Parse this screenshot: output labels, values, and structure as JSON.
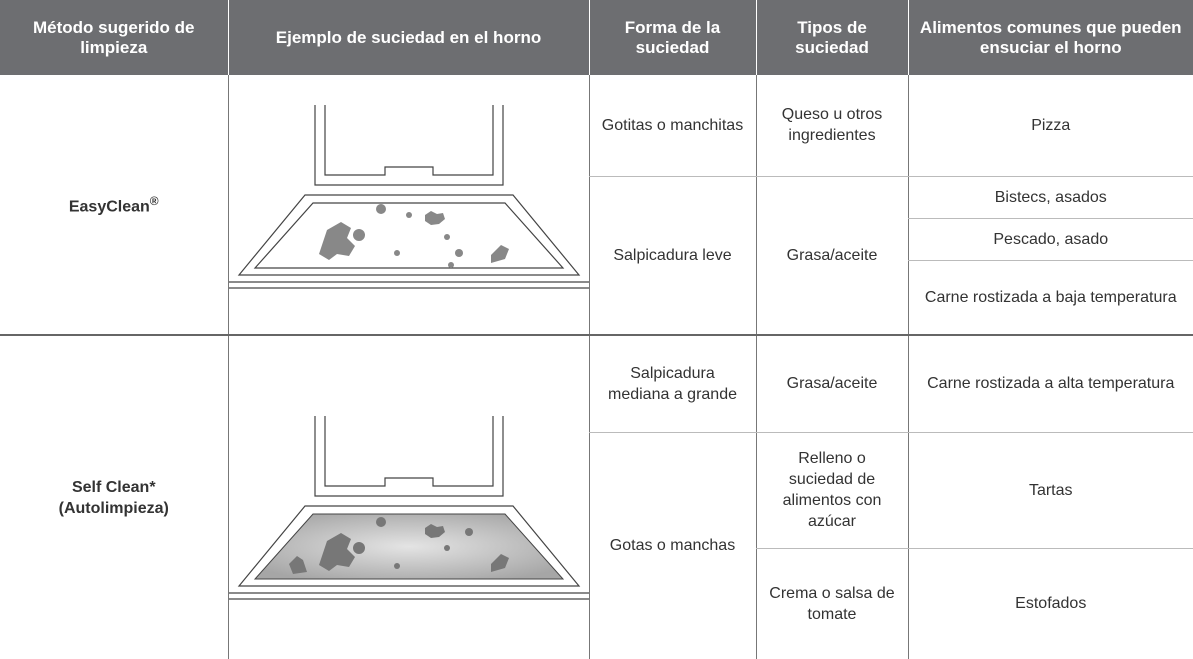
{
  "table": {
    "headers": [
      "Método sugerido de limpieza",
      "Ejemplo de suciedad en el horno",
      "Forma de la suciedad",
      "Tipos de suciedad",
      "Alimentos comunes que pueden ensuciar el horno"
    ],
    "easyclean": {
      "method": "EasyClean",
      "mark": "®",
      "rows": [
        {
          "form": "Gotitas o manchitas",
          "type": "Queso u otros ingredientes",
          "foods": [
            "Pizza"
          ]
        },
        {
          "form": "Salpicadura leve",
          "type": "Grasa/aceite",
          "foods": [
            "Bistecs, asados",
            "Pescado, asado",
            "Carne rostizada a baja temperatura"
          ]
        }
      ]
    },
    "selfclean": {
      "method": [
        "Self Clean*",
        "(Autolimpieza)"
      ],
      "rows": [
        {
          "form": "Salpicadura mediana a grande",
          "type": "Grasa/aceite",
          "food": "Carne rostizada a alta temperatura"
        },
        {
          "form": "Gotas o manchas",
          "types": [
            "Relleno o suciedad de alimentos con azúcar",
            "Crema o salsa de tomate"
          ],
          "foods": [
            "Tartas",
            "Estofados"
          ]
        }
      ]
    }
  }
}
